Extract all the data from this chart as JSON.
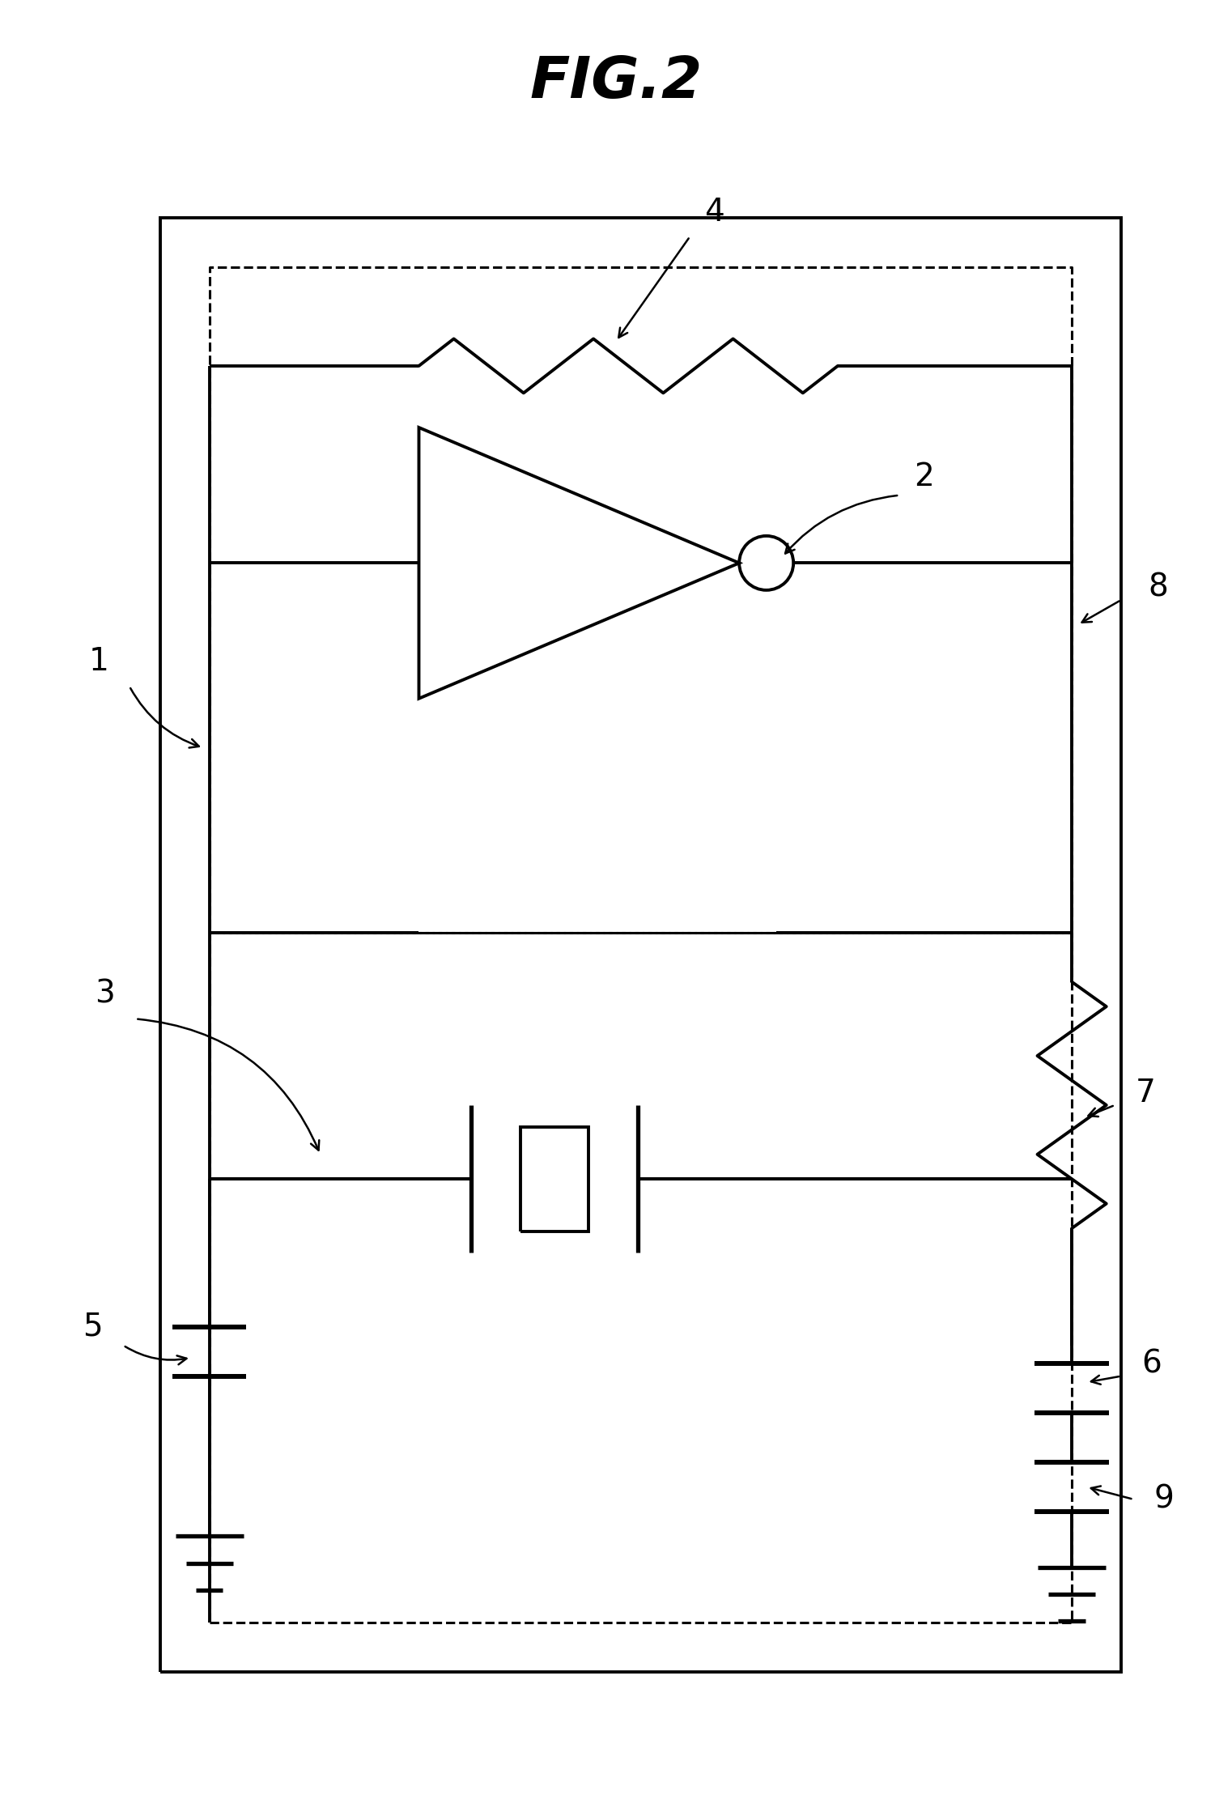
{
  "title": "FIG.2",
  "bg_color": "#ffffff",
  "line_color": "#000000",
  "lw": 2.8,
  "dash_lw": 2.2,
  "label_fontsize": 28,
  "title_fontsize": 52
}
